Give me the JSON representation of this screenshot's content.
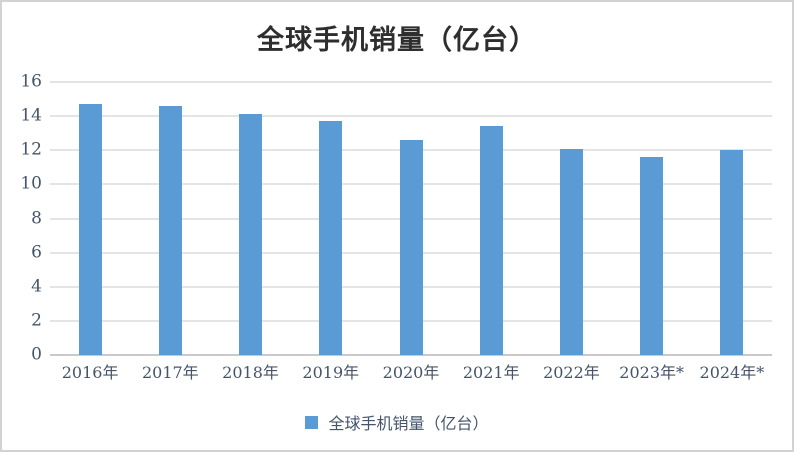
{
  "chart_data": {
    "type": "bar",
    "title": "全球手机销量（亿台）",
    "categories": [
      "2016年",
      "2017年",
      "2018年",
      "2019年",
      "2020年",
      "2021年",
      "2022年",
      "2023年*",
      "2024年*"
    ],
    "values": [
      14.7,
      14.6,
      14.1,
      13.7,
      12.6,
      13.4,
      12.1,
      11.6,
      12.0
    ],
    "series_name": "全球手机销量（亿台）",
    "xlabel": "",
    "ylabel": "",
    "ylim": [
      0,
      16
    ],
    "yticks": [
      0,
      2,
      4,
      6,
      8,
      10,
      12,
      14,
      16
    ],
    "grid": true,
    "legend_position": "bottom",
    "colors": {
      "bar": "#5b9bd5",
      "gridline": "#e4e4e4",
      "axis_line": "#c9c9c9",
      "axis_label": "#44546a",
      "title": "#2e2e2e",
      "frame_border": "#d2d2d2",
      "background": "#ffffff"
    }
  }
}
